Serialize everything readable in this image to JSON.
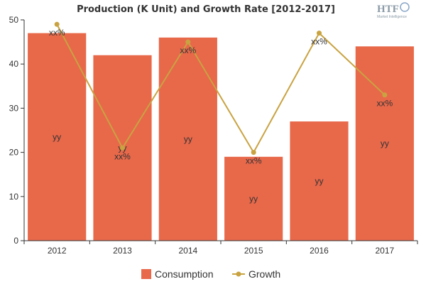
{
  "chart_data": {
    "type": "bar",
    "title": "Production (K Unit) and Growth Rate [2012-2017]",
    "categories": [
      "2012",
      "2013",
      "2014",
      "2015",
      "2016",
      "2017"
    ],
    "ylim": [
      0,
      50
    ],
    "yticks": [
      0,
      10,
      20,
      30,
      40,
      50
    ],
    "grid": false,
    "legend_position": "bottom",
    "series": [
      {
        "name": "Consumption",
        "type": "bar",
        "color": "#e8684a",
        "values": [
          47,
          42,
          46,
          19,
          27,
          44
        ],
        "labels": [
          "yy",
          "yy",
          "yy",
          "yy",
          "yy",
          "yy"
        ]
      },
      {
        "name": "Growth",
        "type": "line",
        "color": "#c9a341",
        "values": [
          49,
          21,
          45,
          20,
          47,
          33
        ],
        "labels": [
          "xx%",
          "xx%",
          "xx%",
          "xx%",
          "xx%",
          "xx%"
        ]
      }
    ]
  },
  "logo": {
    "name": "HTF",
    "sub": "Market Intelligence"
  }
}
